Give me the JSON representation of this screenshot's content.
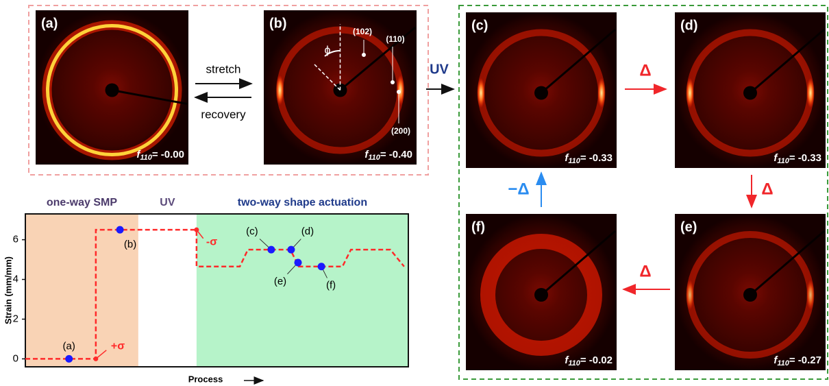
{
  "panels": [
    {
      "label": "(a)",
      "f": "f",
      "sub": "110",
      "value": "= -0.00"
    },
    {
      "label": "(b)",
      "f": "f",
      "sub": "110",
      "value": "= -0.40"
    },
    {
      "label": "(c)",
      "f": "f",
      "sub": "110",
      "value": "= -0.33"
    },
    {
      "label": "(d)",
      "f": "f",
      "sub": "110",
      "value": "= -0.33"
    },
    {
      "label": "(e)",
      "f": "f",
      "sub": "110",
      "value": "= -0.27"
    },
    {
      "label": "(f)",
      "f": "f",
      "sub": "110",
      "value": "= -0.02"
    }
  ],
  "panel_b_annotations": {
    "phi": "ϕ",
    "plane_102": "(102)",
    "plane_110": "(110)",
    "plane_200": "(200)"
  },
  "arrows": {
    "stretch": "stretch",
    "recovery": "recovery",
    "uv": "UV",
    "delta_c_d": "Δ",
    "delta_d_e": "Δ",
    "delta_e_f": "Δ",
    "minus_delta_f_c": "−Δ"
  },
  "chart_data": {
    "type": "line",
    "ylabel": "Strain (mm/mm)",
    "xlabel": "Process",
    "xlim": [
      0,
      100
    ],
    "ylim": [
      -0.4,
      7.3
    ],
    "yticks": [
      0,
      2,
      4,
      6
    ],
    "x": [
      0,
      18.4,
      18.4,
      44.7,
      44.7,
      56,
      58.1,
      69.2,
      71.4,
      82.8,
      85,
      95.3,
      98.9
    ],
    "values": [
      0,
      0,
      6.5,
      6.5,
      4.65,
      4.65,
      5.5,
      5.5,
      4.65,
      4.65,
      5.5,
      5.5,
      4.65
    ],
    "color": "#ff2a2a",
    "regions": [
      {
        "label": "one-way SMP",
        "x": [
          0,
          29.5
        ],
        "color": "#f9d3b5",
        "label_color": "#4b3a6b"
      },
      {
        "label": "UV",
        "x": [
          29.5,
          44.7
        ],
        "color": "#ffffff",
        "label_color": "#5b4a7a"
      },
      {
        "label": "two-way shape actuation",
        "x": [
          44.7,
          100
        ],
        "color": "#b6f3c9",
        "label_color": "#1f3a8a"
      }
    ],
    "points": [
      {
        "label": "(a)",
        "x": 11.4,
        "y": 0
      },
      {
        "label": "(b)",
        "x": 24.7,
        "y": 6.5
      },
      {
        "label": "(c)",
        "x": 64.2,
        "y": 5.5
      },
      {
        "label": "(d)",
        "x": 69.4,
        "y": 5.5
      },
      {
        "label": "(e)",
        "x": 71.2,
        "y": 4.85
      },
      {
        "label": "(f)",
        "x": 77.3,
        "y": 4.65
      }
    ],
    "point_color": "#1a1aff",
    "annotations": [
      {
        "text": "+σ",
        "x": 18.4,
        "y": 0
      },
      {
        "text": "-σ",
        "x": 44.7,
        "y": 6.5
      }
    ]
  }
}
